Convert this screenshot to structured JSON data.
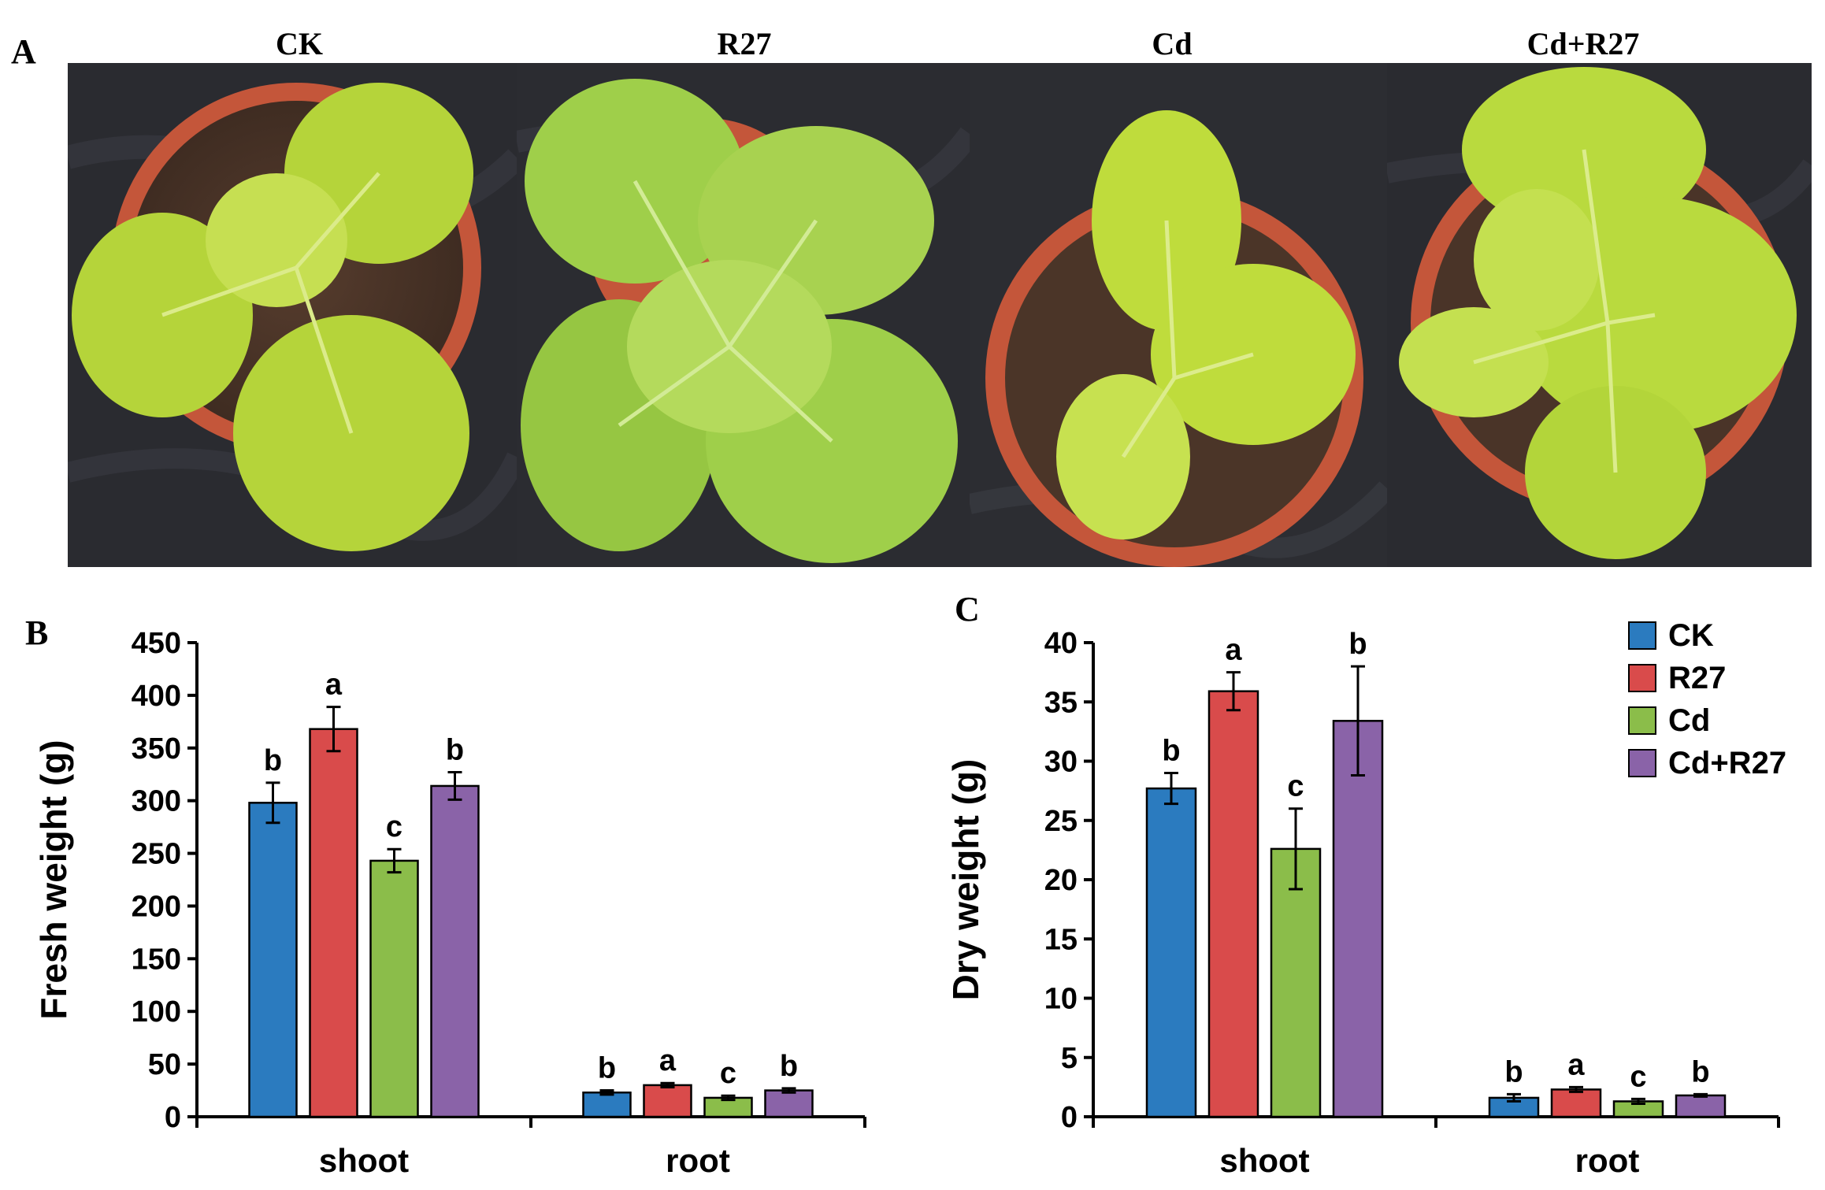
{
  "panel_labels": {
    "a": "A",
    "b": "B",
    "c": "C"
  },
  "photos": [
    {
      "title": "CK",
      "leaf_color": "#b5d43a",
      "leaf_dark": "#8fb22a"
    },
    {
      "title": "R27",
      "leaf_color": "#9fcf4a",
      "leaf_dark": "#6fa832"
    },
    {
      "title": "Cd",
      "leaf_color": "#bfdc3c",
      "leaf_dark": "#93b82c"
    },
    {
      "title": "Cd+R27",
      "leaf_color": "#b9da3e",
      "leaf_dark": "#8cb52c"
    }
  ],
  "colors": {
    "CK": "#2b7bbf",
    "R27": "#d94b4b",
    "Cd": "#8bbd4a",
    "Cd+R27": "#8a63a8"
  },
  "chart_data": [
    {
      "type": "bar",
      "panel": "B",
      "ylabel": "Fresh weight (g)",
      "ylim": [
        0,
        450
      ],
      "yticks": [
        0,
        50,
        100,
        150,
        200,
        250,
        300,
        350,
        400,
        450
      ],
      "categories": [
        "shoot",
        "root"
      ],
      "series": [
        {
          "name": "CK",
          "values": [
            298,
            23
          ],
          "errors": [
            19,
            2
          ],
          "letters": [
            "b",
            "b"
          ]
        },
        {
          "name": "R27",
          "values": [
            368,
            30
          ],
          "errors": [
            21,
            2
          ],
          "letters": [
            "a",
            "a"
          ]
        },
        {
          "name": "Cd",
          "values": [
            243,
            18
          ],
          "errors": [
            11,
            2
          ],
          "letters": [
            "c",
            "c"
          ]
        },
        {
          "name": "Cd+R27",
          "values": [
            314,
            25
          ],
          "errors": [
            13,
            2
          ],
          "letters": [
            "b",
            "b"
          ]
        }
      ]
    },
    {
      "type": "bar",
      "panel": "C",
      "ylabel": "Dry weight (g)",
      "ylim": [
        0,
        40
      ],
      "yticks": [
        0,
        5,
        10,
        15,
        20,
        25,
        30,
        35,
        40
      ],
      "categories": [
        "shoot",
        "root"
      ],
      "legend": [
        "CK",
        "R27",
        "Cd",
        "Cd+R27"
      ],
      "legend_position": "top-right",
      "series": [
        {
          "name": "CK",
          "values": [
            27.7,
            1.6
          ],
          "errors": [
            1.3,
            0.3
          ],
          "letters": [
            "b",
            "b"
          ]
        },
        {
          "name": "R27",
          "values": [
            35.9,
            2.3
          ],
          "errors": [
            1.6,
            0.2
          ],
          "letters": [
            "a",
            "a"
          ]
        },
        {
          "name": "Cd",
          "values": [
            22.6,
            1.3
          ],
          "errors": [
            3.4,
            0.2
          ],
          "letters": [
            "c",
            "c"
          ]
        },
        {
          "name": "Cd+R27",
          "values": [
            33.4,
            1.8
          ],
          "errors": [
            4.6,
            0.1
          ],
          "letters": [
            "b",
            "b"
          ]
        }
      ]
    }
  ]
}
